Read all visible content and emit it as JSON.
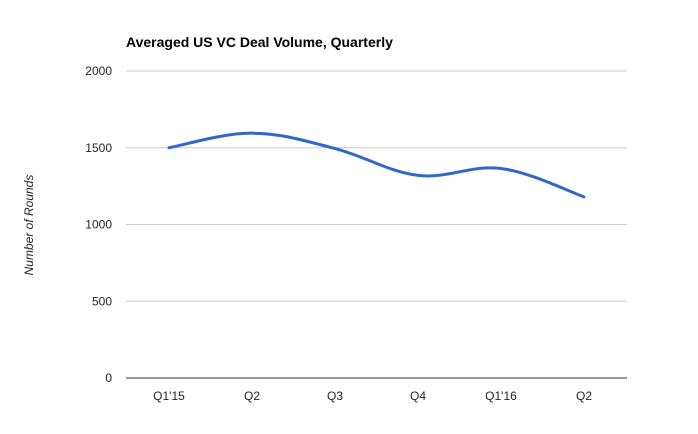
{
  "chart_data": {
    "type": "line",
    "title": "Averaged US VC Deal Volume, Quarterly",
    "xlabel": "",
    "ylabel": "Number of Rounds",
    "categories": [
      "Q1'15",
      "Q2",
      "Q3",
      "Q4",
      "Q1'16",
      "Q2"
    ],
    "series": [
      {
        "values": [
          1500,
          1595,
          1495,
          1320,
          1365,
          1180
        ],
        "color": "#3366cc"
      }
    ],
    "ylim": [
      0,
      2000
    ],
    "yticks": [
      0,
      500,
      1000,
      1500,
      2000
    ],
    "grid": true,
    "smooth": true,
    "legend": "none"
  }
}
